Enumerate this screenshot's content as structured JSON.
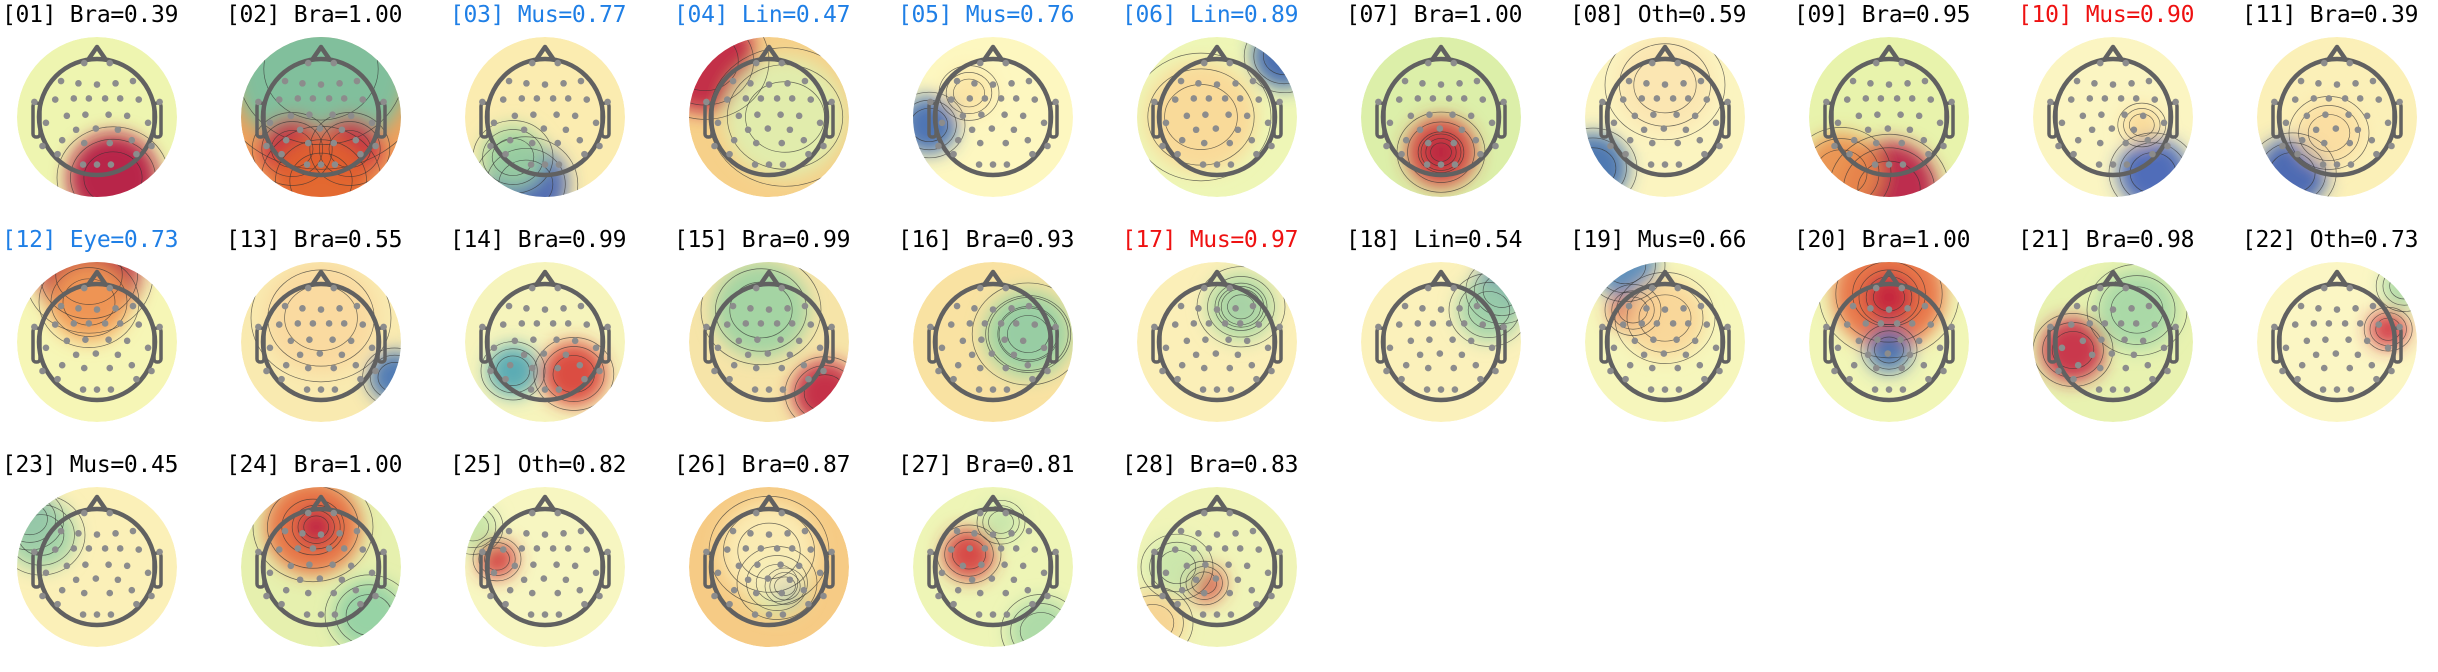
{
  "chart_data": {
    "type": "heatmap",
    "title": "",
    "description": "Grid of 28 ICA component scalp topographies (EEG topomaps), each labelled with index, predicted class and probability",
    "layout": {
      "rows": 3,
      "cols": 11,
      "grid": false,
      "legend": "none"
    },
    "colormap": "RdYlBu_r (Spectral)",
    "label_colors": {
      "default": "#000000",
      "blue": "#1f7fe6",
      "red": "#ee1111"
    },
    "components": [
      {
        "id": "01",
        "cls": "Bra",
        "prob": "0.39",
        "color": "default",
        "bg": "#eef5b0",
        "blobs": [
          {
            "x": 0.6,
            "y": 0.88,
            "r": 0.28,
            "c": "#b3123f"
          }
        ]
      },
      {
        "id": "02",
        "cls": "Bra",
        "prob": "1.00",
        "color": "default",
        "bg": "#f0a05a",
        "blobs": [
          {
            "x": 0.5,
            "y": 0.2,
            "r": 0.55,
            "c": "#76c2a3"
          },
          {
            "x": 0.32,
            "y": 0.7,
            "r": 0.2,
            "c": "#c8263f"
          },
          {
            "x": 0.68,
            "y": 0.7,
            "r": 0.2,
            "c": "#c8263f"
          },
          {
            "x": 0.5,
            "y": 0.9,
            "r": 0.3,
            "c": "#e2642f"
          }
        ]
      },
      {
        "id": "03",
        "cls": "Mus",
        "prob": "0.77",
        "color": "blue",
        "bg": "#fbecb0",
        "blobs": [
          {
            "x": 0.38,
            "y": 0.92,
            "r": 0.26,
            "c": "#3d5db3"
          },
          {
            "x": 0.3,
            "y": 0.75,
            "r": 0.2,
            "c": "#9ed5a0"
          }
        ]
      },
      {
        "id": "04",
        "cls": "Lin",
        "prob": "0.47",
        "color": "blue",
        "bg": "#f6d089",
        "blobs": [
          {
            "x": 0.1,
            "y": 0.15,
            "r": 0.32,
            "c": "#be1d41"
          },
          {
            "x": 0.6,
            "y": 0.5,
            "r": 0.38,
            "c": "#dff0b0"
          }
        ]
      },
      {
        "id": "05",
        "cls": "Mus",
        "prob": "0.76",
        "color": "blue",
        "bg": "#fdf7c0",
        "blobs": [
          {
            "x": 0.1,
            "y": 0.55,
            "r": 0.18,
            "c": "#3b67b3"
          },
          {
            "x": 0.35,
            "y": 0.35,
            "r": 0.15,
            "c": "#fbe3a4"
          }
        ]
      },
      {
        "id": "06",
        "cls": "Lin",
        "prob": "0.89",
        "color": "blue",
        "bg": "#eef6b6",
        "blobs": [
          {
            "x": 0.92,
            "y": 0.12,
            "r": 0.2,
            "c": "#3960b0"
          },
          {
            "x": 0.4,
            "y": 0.5,
            "r": 0.35,
            "c": "#fbd796"
          }
        ]
      },
      {
        "id": "07",
        "cls": "Bra",
        "prob": "1.00",
        "color": "default",
        "bg": "#dcefa9",
        "blobs": [
          {
            "x": 0.5,
            "y": 0.72,
            "r": 0.22,
            "c": "#d43a37"
          },
          {
            "x": 0.5,
            "y": 0.72,
            "r": 0.1,
            "c": "#b51a40"
          }
        ]
      },
      {
        "id": "08",
        "cls": "Oth",
        "prob": "0.59",
        "color": "default",
        "bg": "#fbf4c0",
        "blobs": [
          {
            "x": 0.05,
            "y": 0.82,
            "r": 0.22,
            "c": "#3a6bb0"
          },
          {
            "x": 0.5,
            "y": 0.3,
            "r": 0.3,
            "c": "#fbe4b0"
          }
        ]
      },
      {
        "id": "09",
        "cls": "Bra",
        "prob": "0.95",
        "color": "default",
        "bg": "#e8f3ac",
        "blobs": [
          {
            "x": 0.5,
            "y": 0.95,
            "r": 0.3,
            "c": "#b81a44"
          },
          {
            "x": 0.2,
            "y": 0.85,
            "r": 0.25,
            "c": "#eb8c4a"
          }
        ]
      },
      {
        "id": "10",
        "cls": "Mus",
        "prob": "0.90",
        "color": "red",
        "bg": "#fbf5c2",
        "blobs": [
          {
            "x": 0.75,
            "y": 0.85,
            "r": 0.22,
            "c": "#3d5eb8"
          },
          {
            "x": 0.68,
            "y": 0.55,
            "r": 0.12,
            "c": "#fad896"
          }
        ]
      },
      {
        "id": "11",
        "cls": "Bra",
        "prob": "0.39",
        "color": "default",
        "bg": "#fbf0b8",
        "blobs": [
          {
            "x": 0.22,
            "y": 0.85,
            "r": 0.22,
            "c": "#3c5db3"
          },
          {
            "x": 0.45,
            "y": 0.6,
            "r": 0.2,
            "c": "#fbdca0"
          }
        ]
      },
      {
        "id": "12",
        "cls": "Eye",
        "prob": "0.73",
        "color": "blue",
        "bg": "#f6f6b6",
        "blobs": [
          {
            "x": 0.45,
            "y": 0.08,
            "r": 0.32,
            "c": "#b8163f"
          },
          {
            "x": 0.45,
            "y": 0.25,
            "r": 0.25,
            "c": "#f4a057"
          }
        ]
      },
      {
        "id": "13",
        "cls": "Bra",
        "prob": "0.55",
        "color": "default",
        "bg": "#f9eab0",
        "blobs": [
          {
            "x": 0.96,
            "y": 0.72,
            "r": 0.16,
            "c": "#3f70b6"
          },
          {
            "x": 0.5,
            "y": 0.35,
            "r": 0.35,
            "c": "#fad89e"
          }
        ]
      },
      {
        "id": "14",
        "cls": "Bra",
        "prob": "0.99",
        "color": "default",
        "bg": "#f6f4bc",
        "blobs": [
          {
            "x": 0.3,
            "y": 0.68,
            "r": 0.16,
            "c": "#4aa4b4"
          },
          {
            "x": 0.68,
            "y": 0.7,
            "r": 0.2,
            "c": "#d83a35"
          }
        ]
      },
      {
        "id": "15",
        "cls": "Bra",
        "prob": "0.99",
        "color": "default",
        "bg": "#f6e4a8",
        "blobs": [
          {
            "x": 0.45,
            "y": 0.3,
            "r": 0.3,
            "c": "#9bd3a2"
          },
          {
            "x": 0.85,
            "y": 0.82,
            "r": 0.2,
            "c": "#c01f3f"
          }
        ]
      },
      {
        "id": "16",
        "cls": "Bra",
        "prob": "0.93",
        "color": "default",
        "bg": "#f9e2a2",
        "blobs": [
          {
            "x": 0.72,
            "y": 0.45,
            "r": 0.2,
            "c": "#3f69b3"
          },
          {
            "x": 0.72,
            "y": 0.45,
            "r": 0.28,
            "c": "#a1d7a2"
          }
        ]
      },
      {
        "id": "17",
        "cls": "Mus",
        "prob": "0.97",
        "color": "red",
        "bg": "#fbefb8",
        "blobs": [
          {
            "x": 0.65,
            "y": 0.28,
            "r": 0.13,
            "c": "#3a63b1"
          },
          {
            "x": 0.65,
            "y": 0.28,
            "r": 0.22,
            "c": "#b1dda4"
          }
        ]
      },
      {
        "id": "18",
        "cls": "Lin",
        "prob": "0.54",
        "color": "default",
        "bg": "#fbf1bb",
        "blobs": [
          {
            "x": 0.88,
            "y": 0.18,
            "r": 0.18,
            "c": "#3b64b3"
          },
          {
            "x": 0.8,
            "y": 0.3,
            "r": 0.2,
            "c": "#9ed3a8"
          }
        ]
      },
      {
        "id": "19",
        "cls": "Mus",
        "prob": "0.66",
        "color": "default",
        "bg": "#f6f6bc",
        "blobs": [
          {
            "x": 0.3,
            "y": 0.3,
            "r": 0.14,
            "c": "#d43b35"
          },
          {
            "x": 0.25,
            "y": 0.02,
            "r": 0.2,
            "c": "#4f86bd"
          },
          {
            "x": 0.5,
            "y": 0.35,
            "r": 0.25,
            "c": "#fad496"
          }
        ]
      },
      {
        "id": "20",
        "cls": "Bra",
        "prob": "1.00",
        "color": "default",
        "bg": "#f1f6b7",
        "blobs": [
          {
            "x": 0.5,
            "y": 0.2,
            "r": 0.35,
            "c": "#e8693d"
          },
          {
            "x": 0.5,
            "y": 0.22,
            "r": 0.15,
            "c": "#c2213f"
          },
          {
            "x": 0.5,
            "y": 0.55,
            "r": 0.14,
            "c": "#3d6bb4"
          }
        ]
      },
      {
        "id": "21",
        "cls": "Bra",
        "prob": "0.98",
        "color": "default",
        "bg": "#e8f2b0",
        "blobs": [
          {
            "x": 0.25,
            "y": 0.55,
            "r": 0.2,
            "c": "#c52440"
          },
          {
            "x": 0.65,
            "y": 0.3,
            "r": 0.25,
            "c": "#a4d7a6"
          }
        ]
      },
      {
        "id": "22",
        "cls": "Oth",
        "prob": "0.73",
        "color": "default",
        "bg": "#fbf6c4",
        "blobs": [
          {
            "x": 0.82,
            "y": 0.42,
            "r": 0.12,
            "c": "#cf2e3d"
          },
          {
            "x": 0.92,
            "y": 0.15,
            "r": 0.14,
            "c": "#a7d8a5"
          }
        ]
      },
      {
        "id": "23",
        "cls": "Mus",
        "prob": "0.45",
        "color": "default",
        "bg": "#fbf0b8",
        "blobs": [
          {
            "x": 0.08,
            "y": 0.2,
            "r": 0.17,
            "c": "#3a5db2"
          },
          {
            "x": 0.15,
            "y": 0.3,
            "r": 0.22,
            "c": "#9fd3a7"
          }
        ]
      },
      {
        "id": "24",
        "cls": "Bra",
        "prob": "1.00",
        "color": "default",
        "bg": "#e6f0ae",
        "blobs": [
          {
            "x": 0.45,
            "y": 0.25,
            "r": 0.3,
            "c": "#e8683c"
          },
          {
            "x": 0.47,
            "y": 0.25,
            "r": 0.12,
            "c": "#bd1c42"
          },
          {
            "x": 0.8,
            "y": 0.8,
            "r": 0.22,
            "c": "#8fcfa4"
          }
        ]
      },
      {
        "id": "25",
        "cls": "Oth",
        "prob": "0.82",
        "color": "default",
        "bg": "#f7f6c1",
        "blobs": [
          {
            "x": 0.2,
            "y": 0.45,
            "r": 0.12,
            "c": "#d13339"
          },
          {
            "x": 0.05,
            "y": 0.25,
            "r": 0.15,
            "c": "#c4e4a5"
          }
        ]
      },
      {
        "id": "26",
        "cls": "Bra",
        "prob": "0.87",
        "color": "default",
        "bg": "#f6cb85",
        "blobs": [
          {
            "x": 0.55,
            "y": 0.6,
            "r": 0.2,
            "c": "#d4edaa"
          },
          {
            "x": 0.6,
            "y": 0.62,
            "r": 0.1,
            "c": "#3c68b3"
          },
          {
            "x": 0.5,
            "y": 0.4,
            "r": 0.3,
            "c": "#fbeeb8"
          }
        ]
      },
      {
        "id": "27",
        "cls": "Bra",
        "prob": "0.81",
        "color": "default",
        "bg": "#eef5b6",
        "blobs": [
          {
            "x": 0.35,
            "y": 0.42,
            "r": 0.16,
            "c": "#d4383a"
          },
          {
            "x": 0.55,
            "y": 0.22,
            "r": 0.12,
            "c": "#c4e4aa"
          },
          {
            "x": 0.8,
            "y": 0.9,
            "r": 0.2,
            "c": "#a7d8a6"
          }
        ]
      },
      {
        "id": "28",
        "cls": "Bra",
        "prob": "0.83",
        "color": "default",
        "bg": "#f0f4b8",
        "blobs": [
          {
            "x": 0.42,
            "y": 0.6,
            "r": 0.12,
            "c": "#d6413c"
          },
          {
            "x": 0.25,
            "y": 0.5,
            "r": 0.18,
            "c": "#c8e6ab"
          },
          {
            "x": 0.1,
            "y": 0.85,
            "r": 0.2,
            "c": "#f7d291"
          }
        ]
      }
    ]
  }
}
